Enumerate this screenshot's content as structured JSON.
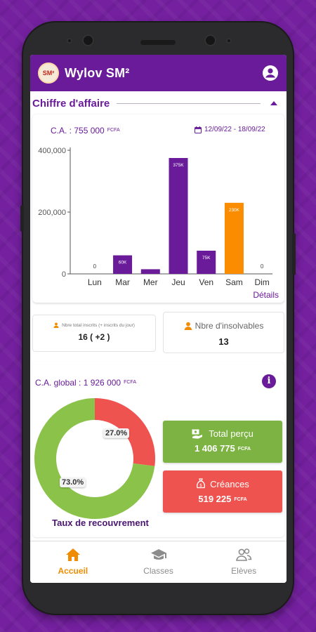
{
  "app": {
    "title": "Wylov SM²",
    "logo_text": "SM²"
  },
  "section": {
    "title": "Chiffre d'affaire"
  },
  "revenue": {
    "label": "C.A. : 755 000",
    "unit": "FCFA",
    "date_range": "12/09/22 - 18/09/22",
    "details_link": "Détails"
  },
  "chart_data": {
    "type": "bar",
    "categories": [
      "Lun",
      "Mar",
      "Mer",
      "Jeu",
      "Ven",
      "Sam",
      "Dim"
    ],
    "values": [
      0,
      60000,
      15000,
      375000,
      75000,
      230000,
      0
    ],
    "value_labels": [
      "0",
      "60K",
      "15K",
      "375K",
      "75K",
      "230K",
      "0"
    ],
    "bar_colors": [
      "#6a1b9a",
      "#6a1b9a",
      "#6a1b9a",
      "#6a1b9a",
      "#6a1b9a",
      "#fb8c00",
      "#6a1b9a"
    ],
    "yticks": [
      "0",
      "200,000",
      "400,000"
    ],
    "ytick_values": [
      0,
      200000,
      400000
    ],
    "ylim": [
      0,
      400000
    ],
    "grid": false,
    "title": "",
    "xlabel": "",
    "ylabel": ""
  },
  "stats": {
    "inscrits_title": "Nbre total inscrits (+ inscrits du jour)",
    "inscrits_value": "16 ( +2 )",
    "insolvables_title": "Nbre d'insolvables",
    "insolvables_value": "13"
  },
  "global": {
    "label": "C.A. global : 1 926 000",
    "unit": "FCFA",
    "info_icon": "i"
  },
  "recovery": {
    "recovered_pct": 73.0,
    "outstanding_pct": 27.0,
    "recovered_label": "73.0%",
    "outstanding_label": "27.0%",
    "caption": "Taux de recouvrement",
    "recovered_color": "#8bc34a",
    "outstanding_color": "#ef5350"
  },
  "total_percu": {
    "label": "Total perçu",
    "value": "1 406 775",
    "unit": "FCFA",
    "color": "#7cb342"
  },
  "creances": {
    "label": "Créances",
    "value": "519 225",
    "unit": "FCFA",
    "color": "#ef5350"
  },
  "nav": {
    "items": [
      {
        "label": "Accueil",
        "icon": "home-icon",
        "active": true
      },
      {
        "label": "Classes",
        "icon": "graduation-cap-icon",
        "active": false
      },
      {
        "label": "Elèves",
        "icon": "students-icon",
        "active": false
      }
    ]
  },
  "colors": {
    "primary": "#6a1b9a",
    "accent": "#f08c00"
  }
}
